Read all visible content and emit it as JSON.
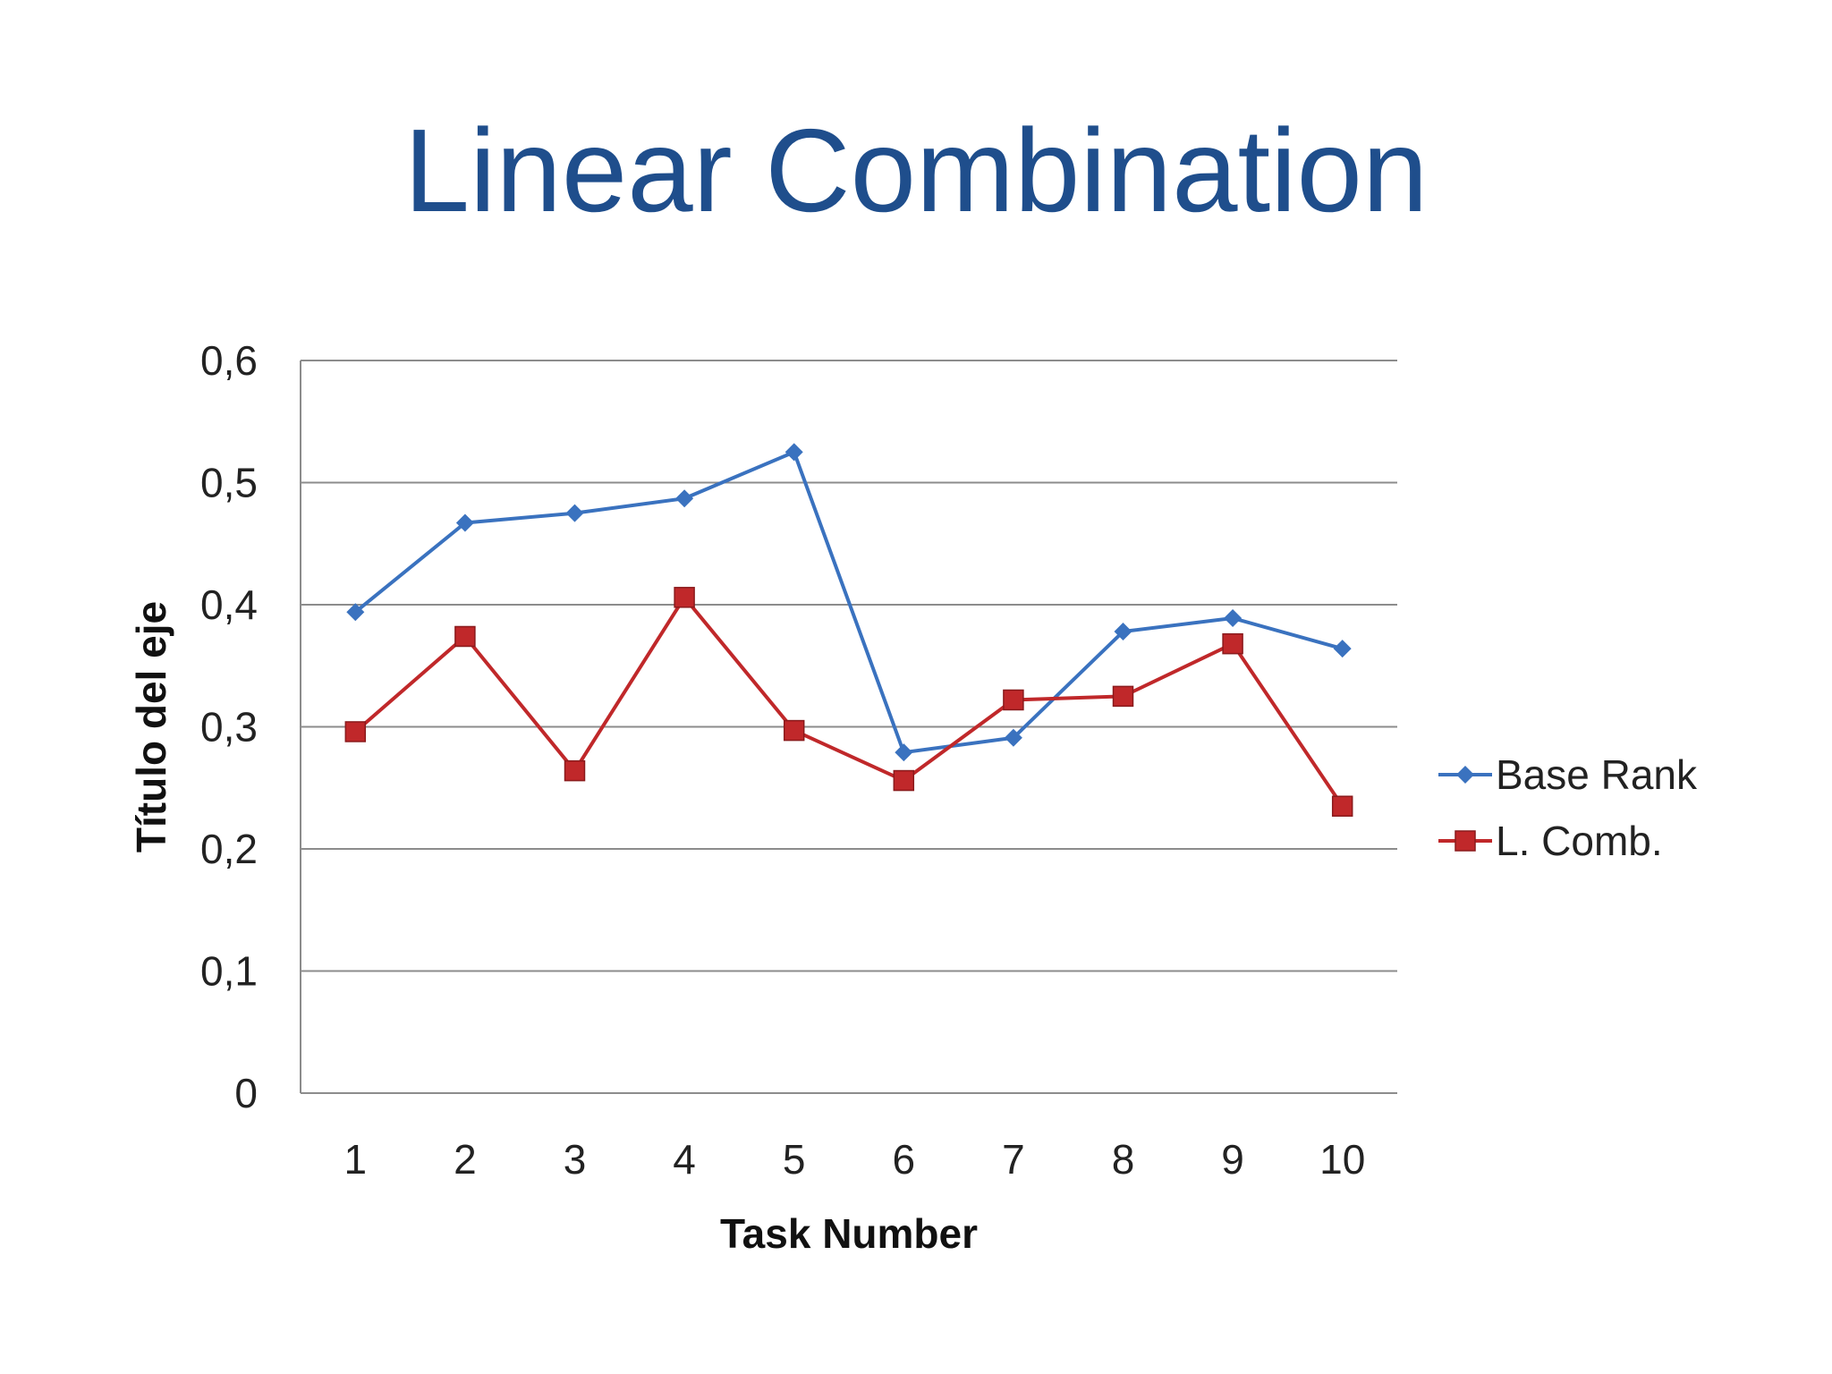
{
  "slide": {
    "title": "Linear Combination"
  },
  "colors": {
    "title": "#1f4e8c",
    "base_rank": "#3a72bf",
    "l_comb": "#c0282a",
    "grid": "#8c8c8c"
  },
  "chart_data": {
    "type": "line",
    "title": "",
    "xlabel": "Task Number",
    "ylabel": "Título del eje",
    "categories": [
      "1",
      "2",
      "3",
      "4",
      "5",
      "6",
      "7",
      "8",
      "9",
      "10"
    ],
    "ylim": [
      0,
      0.6
    ],
    "yticks": [
      0,
      0.1,
      0.2,
      0.3,
      0.4,
      0.5,
      0.6
    ],
    "ytick_labels": [
      "0",
      "0,1",
      "0,2",
      "0,3",
      "0,4",
      "0,5",
      "0,6"
    ],
    "grid": true,
    "legend_position": "right",
    "series": [
      {
        "name": "Base Rank",
        "color": "#3a72bf",
        "marker": "diamond",
        "values": [
          0.394,
          0.467,
          0.475,
          0.487,
          0.525,
          0.279,
          0.291,
          0.378,
          0.389,
          0.364
        ]
      },
      {
        "name": "L. Comb.",
        "color": "#c0282a",
        "marker": "square",
        "values": [
          0.296,
          0.374,
          0.264,
          0.406,
          0.297,
          0.256,
          0.322,
          0.325,
          0.368,
          0.235
        ]
      }
    ]
  }
}
